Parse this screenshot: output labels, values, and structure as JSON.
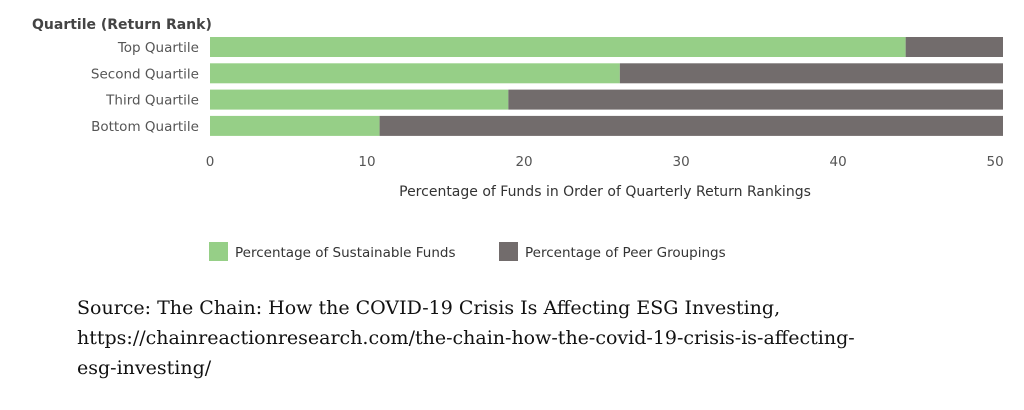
{
  "chart_data": {
    "type": "bar",
    "orientation": "horizontal",
    "stacked": true,
    "axis_title": "Quartile (Return Rank)",
    "categories": [
      "Top Quartile",
      "Second Quartile",
      "Third Quartile",
      "Bottom Quartile"
    ],
    "series": [
      {
        "name": "Percentage of Sustainable Funds",
        "values": [
          44.3,
          26.1,
          19.0,
          10.8
        ],
        "color": "#96cf87"
      },
      {
        "name": "Percentage of Peer Groupings",
        "values": [
          6.2,
          24.4,
          31.5,
          39.7
        ],
        "color": "#726c6c"
      }
    ],
    "xlabel": "Percentage of Funds in Order of Quarterly Return Rankings",
    "xticks": [
      0,
      10,
      20,
      30,
      40,
      50
    ],
    "xlim": [
      0,
      50.5
    ],
    "legend": "bottom"
  },
  "source": {
    "lines": [
      "Source: The Chain: How the COVID-19 Crisis Is Affecting ESG Investing,",
      "https://chainreactionresearch.com/the-chain-how-the-covid-19-crisis-is-affecting-",
      "esg-investing/"
    ]
  }
}
